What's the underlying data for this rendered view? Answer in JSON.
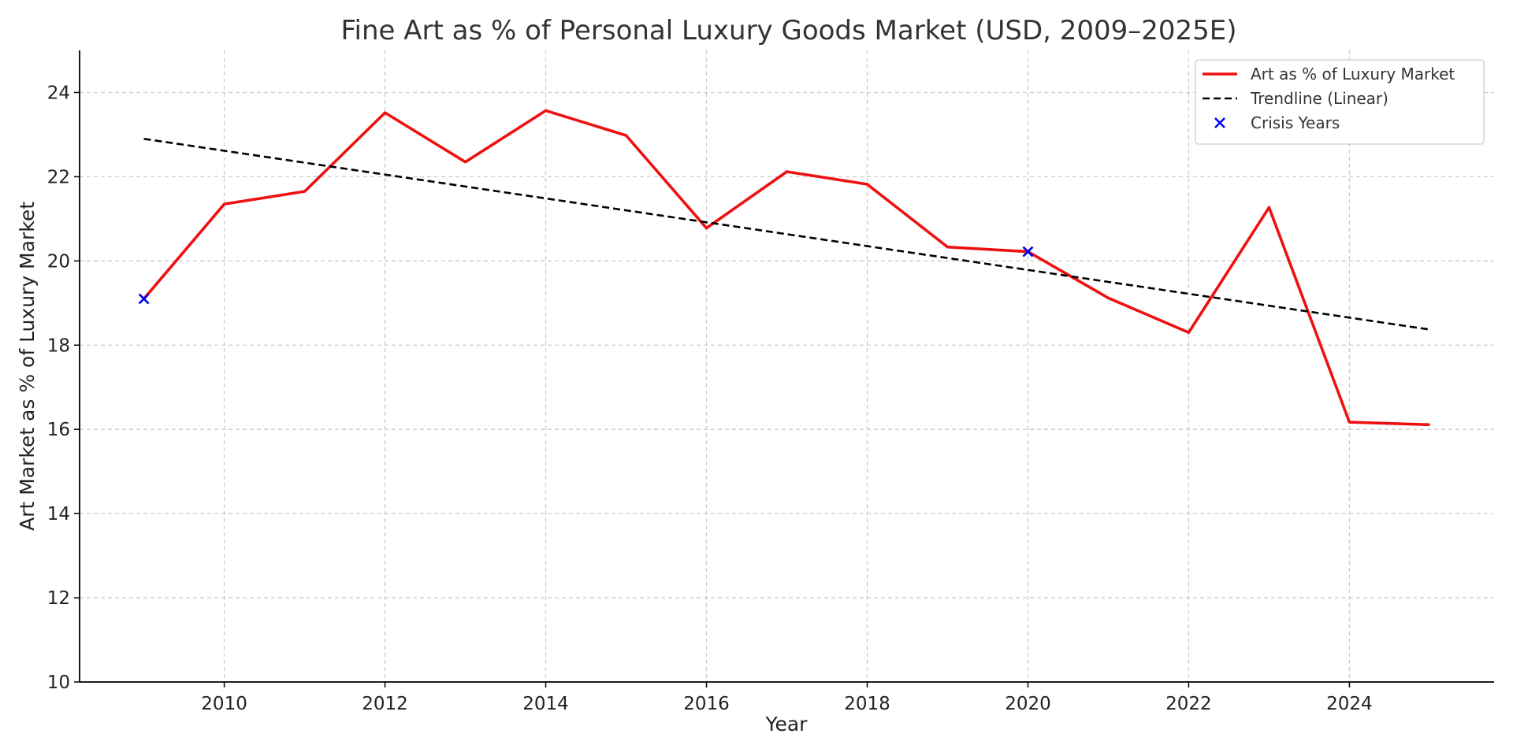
{
  "chart_data": {
    "type": "line",
    "title": "Fine Art as % of Personal Luxury Goods Market (USD, 2009–2025E)",
    "xlabel": "Year",
    "ylabel": "Art Market as % of Luxury Market",
    "xlim": [
      2008.2,
      2025.8
    ],
    "ylim": [
      10,
      25
    ],
    "grid": true,
    "legend_position": "top-right",
    "x_ticks": [
      2010,
      2012,
      2014,
      2016,
      2018,
      2020,
      2022,
      2024
    ],
    "y_ticks": [
      10,
      12,
      14,
      16,
      18,
      20,
      22,
      24
    ],
    "series": [
      {
        "name": "Art as % of Luxury Market",
        "kind": "line",
        "color": "#ee1111",
        "x": [
          2009,
          2010,
          2011,
          2012,
          2013,
          2014,
          2015,
          2016,
          2017,
          2018,
          2019,
          2020,
          2021,
          2022,
          2023,
          2024,
          2025
        ],
        "values": [
          19.1,
          21.35,
          21.65,
          23.52,
          22.35,
          23.57,
          22.98,
          20.78,
          22.12,
          21.82,
          20.33,
          20.22,
          19.12,
          18.3,
          21.27,
          16.17,
          16.11
        ]
      },
      {
        "name": "Trendline (Linear)",
        "kind": "dashed-line",
        "color": "#000000",
        "x": [
          2009,
          2025
        ],
        "values": [
          22.9,
          18.37
        ]
      },
      {
        "name": "Crisis Years",
        "kind": "scatter-x",
        "color": "#0000ee",
        "x": [
          2009,
          2020
        ],
        "values": [
          19.1,
          20.22
        ]
      }
    ]
  }
}
